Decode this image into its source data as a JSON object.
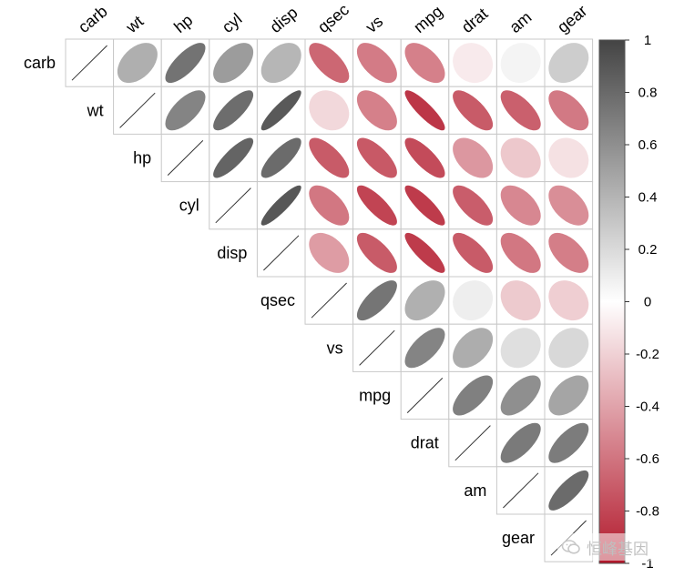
{
  "chart_data": {
    "type": "heatmap",
    "style": "ellipse correlation matrix, upper triangle, diagonal drawn as thin line",
    "variables": [
      "carb",
      "wt",
      "hp",
      "cyl",
      "disp",
      "qsec",
      "vs",
      "mpg",
      "drat",
      "am",
      "gear"
    ],
    "correlations": [
      [
        1.0,
        0.43,
        0.75,
        0.53,
        0.39,
        -0.66,
        -0.57,
        -0.55,
        -0.09,
        0.06,
        0.27
      ],
      [
        0.43,
        1.0,
        0.66,
        0.78,
        0.89,
        -0.17,
        -0.55,
        -0.87,
        -0.71,
        -0.69,
        -0.58
      ],
      [
        0.75,
        0.66,
        1.0,
        0.83,
        0.79,
        -0.71,
        -0.72,
        -0.78,
        -0.45,
        -0.24,
        -0.13
      ],
      [
        0.53,
        0.78,
        0.83,
        1.0,
        0.9,
        -0.59,
        -0.81,
        -0.85,
        -0.7,
        -0.52,
        -0.49
      ],
      [
        0.39,
        0.89,
        0.79,
        0.9,
        1.0,
        -0.43,
        -0.71,
        -0.85,
        -0.71,
        -0.59,
        -0.56
      ],
      [
        -0.66,
        -0.17,
        -0.71,
        -0.59,
        -0.43,
        1.0,
        0.74,
        0.42,
        0.09,
        -0.23,
        -0.21
      ],
      [
        -0.57,
        -0.55,
        -0.72,
        -0.81,
        -0.71,
        0.74,
        1.0,
        0.66,
        0.44,
        0.17,
        0.21
      ],
      [
        -0.55,
        -0.87,
        -0.78,
        -0.85,
        -0.85,
        0.42,
        0.66,
        1.0,
        0.68,
        0.6,
        0.48
      ],
      [
        -0.09,
        -0.71,
        -0.45,
        -0.7,
        -0.71,
        0.09,
        0.44,
        0.68,
        1.0,
        0.71,
        0.7
      ],
      [
        0.06,
        -0.69,
        -0.24,
        -0.52,
        -0.59,
        -0.23,
        0.17,
        0.6,
        0.71,
        1.0,
        0.79
      ],
      [
        0.27,
        -0.58,
        -0.13,
        -0.49,
        -0.56,
        -0.21,
        0.21,
        0.48,
        0.7,
        0.79,
        1.0
      ]
    ],
    "colorbar": {
      "ticks": [
        "1",
        "0.8",
        "0.6",
        "0.4",
        "0.2",
        "0",
        "-0.2",
        "-0.4",
        "-0.6",
        "-0.8",
        "-1"
      ],
      "range": [
        -1,
        1
      ],
      "colors": {
        "neg": "#b2182b",
        "mid": "#ffffff",
        "pos": "#444444"
      }
    }
  },
  "watermark": {
    "text": "恒峰基因",
    "icon": "wechat-icon"
  }
}
